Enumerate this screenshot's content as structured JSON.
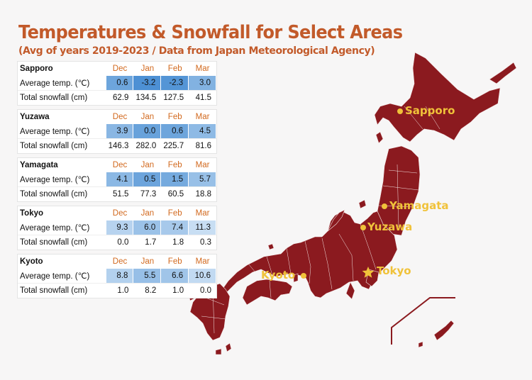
{
  "title": "Temperatures & Snowfall for Select Areas",
  "subtitle": "(Avg of years 2019-2023 / Data from Japan Meteorological Agency)",
  "colors": {
    "title": "#c25a2a",
    "map": "#8b1a1f",
    "city": "#f0c23a",
    "month": "#d2691e"
  },
  "chart_data": {
    "type": "table",
    "months": [
      "Dec",
      "Jan",
      "Feb",
      "Mar"
    ],
    "temp_label": "Average temp. (℃)",
    "snow_label": "Total snowfall (cm)",
    "cities": [
      {
        "name": "Sapporo",
        "temp": [
          "0.6",
          "-3.2",
          "-2.3",
          "3.0"
        ],
        "snow": [
          "62.9",
          "134.5",
          "127.5",
          "41.5"
        ]
      },
      {
        "name": "Yuzawa",
        "temp": [
          "3.9",
          "0.0",
          "0.6",
          "4.5"
        ],
        "snow": [
          "146.3",
          "282.0",
          "225.7",
          "81.6"
        ]
      },
      {
        "name": "Yamagata",
        "temp": [
          "4.1",
          "0.5",
          "1.5",
          "5.7"
        ],
        "snow": [
          "51.5",
          "77.3",
          "60.5",
          "18.8"
        ]
      },
      {
        "name": "Tokyo",
        "temp": [
          "9.3",
          "6.0",
          "7.4",
          "11.3"
        ],
        "snow": [
          "0.0",
          "1.7",
          "1.8",
          "0.3"
        ]
      },
      {
        "name": "Kyoto",
        "temp": [
          "8.8",
          "5.5",
          "6.6",
          "10.6"
        ],
        "snow": [
          "1.0",
          "8.2",
          "1.0",
          "0.0"
        ]
      }
    ]
  },
  "map_labels": {
    "sapporo": "Sapporo",
    "yamagata": "Yamagata",
    "yuzawa": "Yuzawa",
    "kyoto": "Kyoto",
    "tokyo": "Tokyo"
  }
}
